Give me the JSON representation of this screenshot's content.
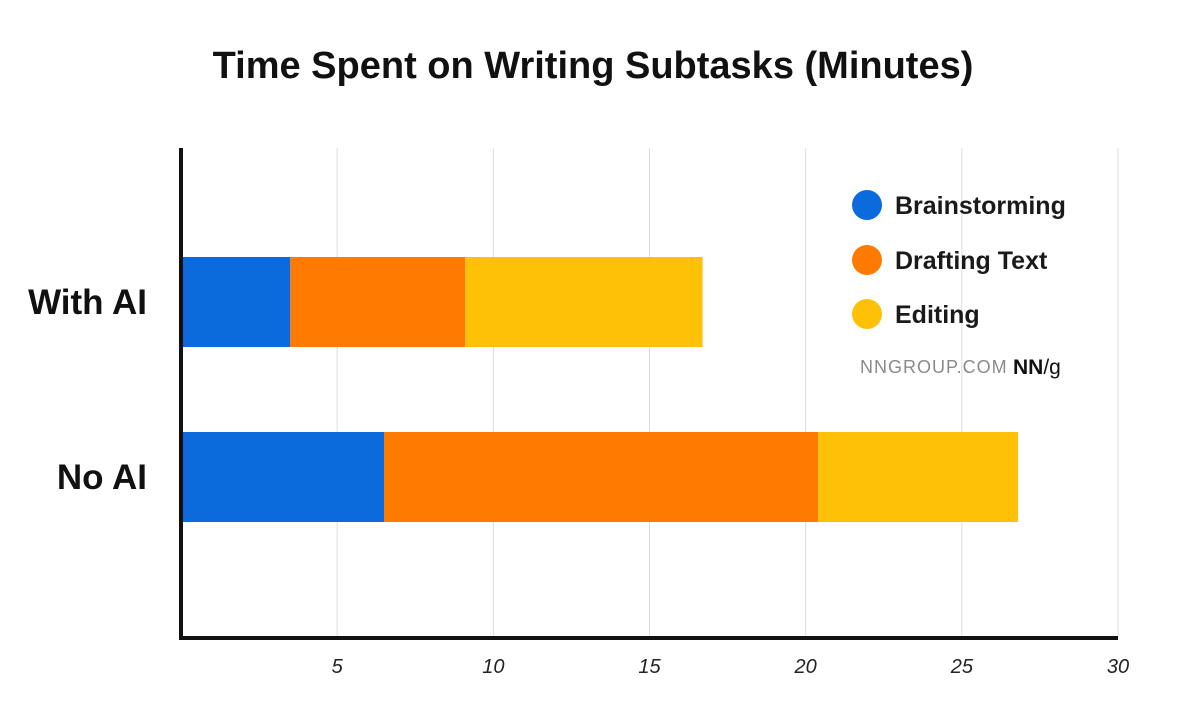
{
  "chart_data": {
    "type": "bar",
    "orientation": "horizontal",
    "stacked": true,
    "title": "Time Spent on Writing Subtasks (Minutes)",
    "categories": [
      "With AI",
      "No AI"
    ],
    "series": [
      {
        "name": "Brainstorming",
        "color": "#0b6bdc",
        "values": [
          3.5,
          6.5
        ]
      },
      {
        "name": "Drafting Text",
        "color": "#ff7a00",
        "values": [
          5.6,
          13.9
        ]
      },
      {
        "name": "Editing",
        "color": "#ffc107",
        "values": [
          7.6,
          6.4
        ]
      }
    ],
    "xlim": [
      0,
      30
    ],
    "xticks": [
      5,
      10,
      15,
      20,
      25,
      30
    ],
    "grid": true,
    "legend_position": "top-right"
  },
  "credit": {
    "site": "NNGROUP.COM",
    "logo_bold": "NN",
    "logo_rest": "/g"
  }
}
